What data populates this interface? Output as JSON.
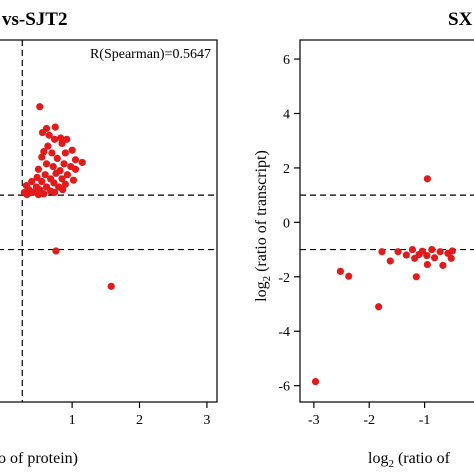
{
  "chart_data": [
    {
      "type": "scatter",
      "title": "vs-SJT2",
      "xlabel": "o of protein)",
      "ylabel": "",
      "annotation": "R(Spearman)=0.5647",
      "xlim": [
        -0.1,
        3.15
      ],
      "ylim": [
        -6.6,
        6.7
      ],
      "xticks": [
        {
          "value": 1,
          "label": "1"
        },
        {
          "value": 2,
          "label": "2"
        },
        {
          "value": 3,
          "label": "3"
        }
      ],
      "ref_lines": {
        "h": [
          1,
          -1
        ],
        "v": [
          0.26
        ]
      },
      "marker_color": "#e21a1a",
      "points": [
        [
          0.52,
          4.25
        ],
        [
          0.62,
          3.45
        ],
        [
          0.56,
          3.3
        ],
        [
          0.75,
          3.5
        ],
        [
          0.66,
          3.2
        ],
        [
          0.74,
          3.05
        ],
        [
          0.83,
          3.1
        ],
        [
          0.92,
          3.05
        ],
        [
          0.64,
          2.8
        ],
        [
          0.85,
          2.9
        ],
        [
          0.58,
          2.6
        ],
        [
          0.7,
          2.55
        ],
        [
          0.9,
          2.55
        ],
        [
          1.0,
          2.65
        ],
        [
          0.55,
          2.4
        ],
        [
          0.78,
          2.35
        ],
        [
          1.05,
          2.3
        ],
        [
          0.62,
          2.15
        ],
        [
          0.88,
          2.15
        ],
        [
          0.72,
          2.05
        ],
        [
          0.98,
          2.05
        ],
        [
          1.15,
          2.2
        ],
        [
          0.5,
          1.95
        ],
        [
          0.82,
          1.9
        ],
        [
          1.05,
          1.95
        ],
        [
          0.6,
          1.75
        ],
        [
          0.76,
          1.8
        ],
        [
          0.93,
          1.75
        ],
        [
          0.48,
          1.65
        ],
        [
          0.68,
          1.6
        ],
        [
          0.85,
          1.6
        ],
        [
          1.02,
          1.55
        ],
        [
          0.4,
          1.5
        ],
        [
          0.55,
          1.5
        ],
        [
          0.73,
          1.45
        ],
        [
          0.9,
          1.4
        ],
        [
          0.32,
          1.35
        ],
        [
          0.47,
          1.3
        ],
        [
          0.62,
          1.3
        ],
        [
          0.8,
          1.3
        ],
        [
          0.36,
          1.2
        ],
        [
          0.52,
          1.2
        ],
        [
          0.68,
          1.15
        ],
        [
          0.86,
          1.2
        ],
        [
          0.29,
          1.1
        ],
        [
          0.42,
          1.1
        ],
        [
          0.58,
          1.05
        ],
        [
          0.74,
          1.1
        ],
        [
          0.33,
          1.02
        ],
        [
          0.5,
          1.02
        ],
        [
          0.76,
          -1.05
        ],
        [
          1.58,
          -2.35
        ]
      ]
    },
    {
      "type": "scatter",
      "title": "SX",
      "xlabel": "log2 (ratio of",
      "ylabel": "log2 (ratio of transcript)",
      "annotation": "",
      "xlim": [
        -3.25,
        0.0
      ],
      "ylim": [
        -6.6,
        6.7
      ],
      "xticks": [
        {
          "value": -3,
          "label": "-3"
        },
        {
          "value": -2,
          "label": "-2"
        },
        {
          "value": -1,
          "label": "-1"
        }
      ],
      "yticks": [
        {
          "value": 6,
          "label": "6"
        },
        {
          "value": 4,
          "label": "4"
        },
        {
          "value": 2,
          "label": "2"
        },
        {
          "value": 0,
          "label": "0"
        },
        {
          "value": -2,
          "label": "-2"
        },
        {
          "value": -4,
          "label": "-4"
        },
        {
          "value": -6,
          "label": "-6"
        }
      ],
      "ref_lines": {
        "h": [
          1,
          -1
        ],
        "v": []
      },
      "marker_color": "#e21a1a",
      "points": [
        [
          -0.95,
          1.6
        ],
        [
          -0.5,
          -1.05
        ],
        [
          -2.97,
          -5.85
        ],
        [
          -2.52,
          -1.8
        ],
        [
          -2.37,
          -1.98
        ],
        [
          -1.83,
          -3.1
        ],
        [
          -1.77,
          -1.08
        ],
        [
          -1.62,
          -1.42
        ],
        [
          -1.48,
          -1.08
        ],
        [
          -1.33,
          -1.2
        ],
        [
          -1.22,
          -1.0
        ],
        [
          -1.18,
          -1.32
        ],
        [
          -1.1,
          -1.18
        ],
        [
          -1.04,
          -1.06
        ],
        [
          -0.96,
          -1.22
        ],
        [
          -0.87,
          -1.0
        ],
        [
          -0.82,
          -1.3
        ],
        [
          -0.72,
          -1.08
        ],
        [
          -0.67,
          -1.58
        ],
        [
          -0.58,
          -1.14
        ],
        [
          -0.52,
          -1.32
        ],
        [
          -1.15,
          -2.0
        ],
        [
          -0.95,
          -1.55
        ]
      ]
    }
  ]
}
